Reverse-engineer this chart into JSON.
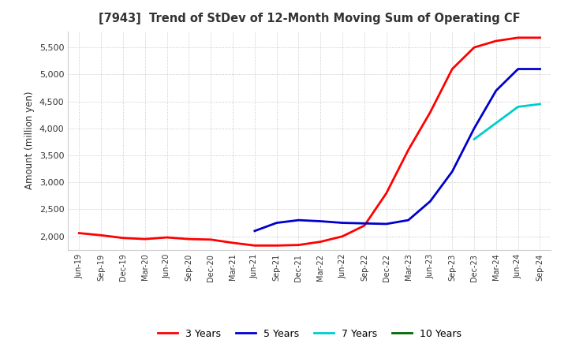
{
  "title": "[7943]  Trend of StDev of 12-Month Moving Sum of Operating CF",
  "ylabel": "Amount (million yen)",
  "background_color": "#ffffff",
  "grid_color": "#bbbbbb",
  "ylim": [
    1750,
    5800
  ],
  "yticks": [
    2000,
    2500,
    3000,
    3500,
    4000,
    4500,
    5000,
    5500
  ],
  "x_labels": [
    "Jun-19",
    "Sep-19",
    "Dec-19",
    "Mar-20",
    "Jun-20",
    "Sep-20",
    "Dec-20",
    "Mar-21",
    "Jun-21",
    "Sep-21",
    "Dec-21",
    "Mar-22",
    "Jun-22",
    "Sep-22",
    "Dec-22",
    "Mar-23",
    "Jun-23",
    "Sep-23",
    "Dec-23",
    "Mar-24",
    "Jun-24",
    "Sep-24"
  ],
  "series": {
    "3 Years": {
      "color": "#ff0000",
      "data": [
        2060,
        2020,
        1970,
        1950,
        1980,
        1950,
        1940,
        1880,
        1830,
        1830,
        1840,
        1900,
        2000,
        2200,
        2800,
        3600,
        4300,
        5100,
        5500,
        5620,
        5680,
        5680
      ]
    },
    "5 Years": {
      "color": "#0000cc",
      "data": [
        null,
        null,
        null,
        null,
        null,
        null,
        null,
        null,
        2100,
        2250,
        2300,
        2280,
        2250,
        2240,
        2230,
        2300,
        2650,
        3200,
        4000,
        4700,
        5100,
        5100
      ]
    },
    "7 Years": {
      "color": "#00cccc",
      "data": [
        null,
        null,
        null,
        null,
        null,
        null,
        null,
        null,
        null,
        null,
        null,
        null,
        null,
        null,
        null,
        null,
        null,
        null,
        3800,
        4100,
        4400,
        4450
      ]
    },
    "10 Years": {
      "color": "#006600",
      "data": [
        null,
        null,
        null,
        null,
        null,
        null,
        null,
        null,
        null,
        null,
        null,
        null,
        null,
        null,
        null,
        null,
        null,
        null,
        null,
        null,
        null,
        null
      ]
    }
  },
  "legend_labels": [
    "3 Years",
    "5 Years",
    "7 Years",
    "10 Years"
  ],
  "legend_colors": [
    "#ff0000",
    "#0000cc",
    "#00cccc",
    "#006600"
  ]
}
